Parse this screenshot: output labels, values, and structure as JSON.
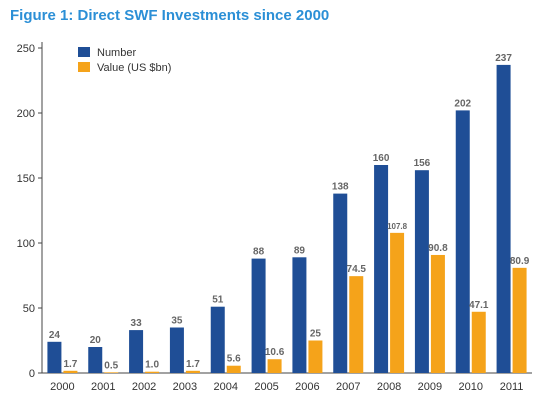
{
  "title": "Figure 1: Direct SWF Investments since 2000",
  "colors": {
    "number": "#1f4e96",
    "value": "#f5a31a"
  },
  "chart_data": {
    "type": "bar",
    "title": "Figure 1: Direct SWF Investments since 2000",
    "xlabel": "",
    "ylabel": "",
    "ylim": [
      0,
      250
    ],
    "yticks": [
      0,
      50,
      100,
      150,
      200,
      250
    ],
    "grid": false,
    "legend_position": "top-left",
    "categories": [
      "2000",
      "2001",
      "2002",
      "2003",
      "2004",
      "2005",
      "2006",
      "2007",
      "2008",
      "2009",
      "2010",
      "2011"
    ],
    "series": [
      {
        "name": "Number",
        "values": [
          24,
          20,
          33,
          35,
          51,
          88,
          89,
          138,
          160,
          156,
          202,
          237
        ],
        "labels": [
          "24",
          "20",
          "33",
          "35",
          "51",
          "88",
          "89",
          "138",
          "160",
          "156",
          "202",
          "237"
        ]
      },
      {
        "name": "Value (US $bn)",
        "values": [
          1.7,
          0.5,
          1.0,
          1.7,
          5.6,
          10.6,
          25,
          74.5,
          107.8,
          90.8,
          47.1,
          80.9
        ],
        "labels": [
          "1.7",
          "0.5",
          "1.0",
          "1.7",
          "5.6",
          "10.6",
          "25",
          "74.5",
          "107.8",
          "90.8",
          "47.1",
          "80.9"
        ]
      }
    ]
  }
}
